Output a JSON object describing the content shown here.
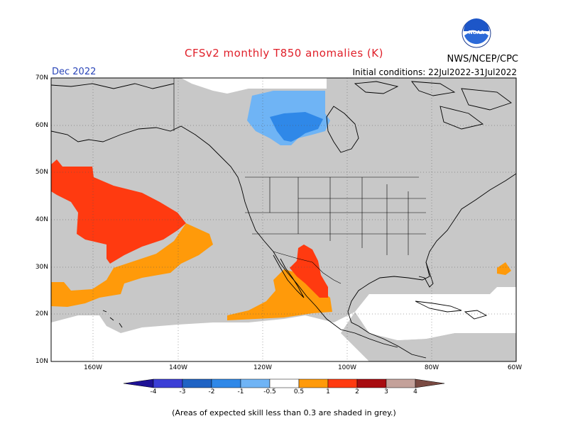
{
  "title": "CFSv2 monthly T850 anomalies (K)",
  "month": "Dec 2022",
  "agency": "NWS/NCEP/CPC",
  "initial_conditions": "Initial conditions: 22Jul2022-31Jul2022",
  "logo_text": "NOAA",
  "map": {
    "lon_range": [
      -170,
      -60
    ],
    "lat_range": [
      10,
      70
    ],
    "y_ticks": [
      "70N",
      "60N",
      "50N",
      "40N",
      "30N",
      "20N",
      "10N"
    ],
    "x_ticks": [
      "160W",
      "140W",
      "120W",
      "100W",
      "80W",
      "60W"
    ]
  },
  "legend": {
    "labels": [
      "-4",
      "-3",
      "-2",
      "-1",
      "-0.5",
      "0.5",
      "1",
      "2",
      "3",
      "4"
    ],
    "colors": [
      "#1e1296",
      "#3b3ed6",
      "#1f63c4",
      "#2f88e8",
      "#6fb4f5",
      "#ffffff",
      "#ff9a0a",
      "#ff3a10",
      "#a80c10",
      "#c4a19a",
      "#7a4a42"
    ]
  },
  "colors": {
    "grey_skill": "#c8c8c8",
    "pos_05_1": "#ff9a0a",
    "pos_1_2": "#ff3a10",
    "neg_05_1": "#6fb4f5",
    "neg_1_2": "#2f88e8"
  },
  "footnote": "(Areas of expected skill less than 0.3 are shaded in grey.)"
}
